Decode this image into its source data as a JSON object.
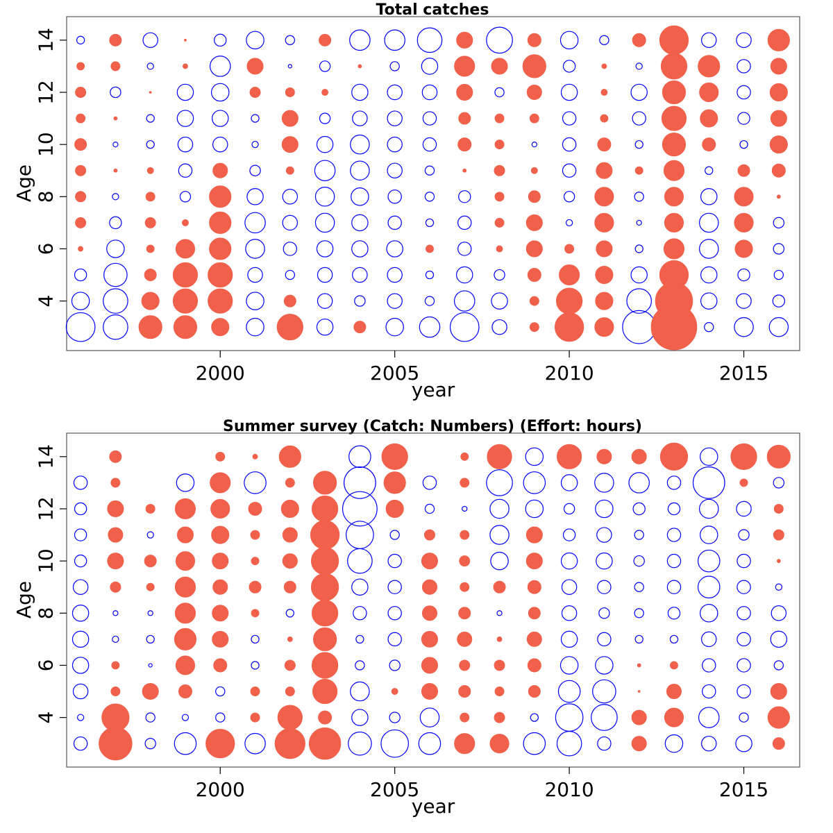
{
  "colors": {
    "positive": "#f0604a",
    "negative": "#0000ff"
  },
  "chart_data": [
    {
      "type": "bubble",
      "title": "Total catches",
      "xlabel": "year",
      "ylabel": "Age",
      "xlim": [
        1995.6,
        2016.6
      ],
      "ylim": [
        2.1,
        14.9
      ],
      "xticks": [
        2000,
        2005,
        2010,
        2015
      ],
      "yticks": [
        4,
        6,
        8,
        10,
        12,
        14
      ],
      "years": [
        1996,
        1997,
        1998,
        1999,
        2000,
        2001,
        2002,
        2003,
        2004,
        2005,
        2006,
        2007,
        2008,
        2009,
        2010,
        2011,
        2012,
        2013,
        2014,
        2015,
        2016
      ],
      "ages": [
        3,
        4,
        5,
        6,
        7,
        8,
        9,
        10,
        11,
        12,
        13,
        14
      ],
      "note": "values are residuals by year (rows) and age (columns); positive = filled, negative = open",
      "values": [
        [
          -1.0,
          -0.6,
          -0.4,
          0.15,
          0.35,
          0.35,
          0.35,
          0.4,
          0.3,
          0.35,
          0.25,
          -0.25
        ],
        [
          -0.85,
          -0.85,
          -0.8,
          -0.6,
          -0.4,
          -0.2,
          0.1,
          -0.15,
          0.1,
          -0.35,
          0.3,
          0.4
        ],
        [
          0.8,
          0.6,
          0.4,
          0.25,
          0.35,
          0.3,
          0.2,
          -0.25,
          -0.25,
          0.05,
          -0.2,
          -0.5
        ],
        [
          0.8,
          0.85,
          0.85,
          0.65,
          0.2,
          -0.35,
          -0.45,
          -0.5,
          -0.55,
          -0.55,
          0.15,
          0.05
        ],
        [
          0.6,
          0.85,
          0.85,
          0.75,
          0.75,
          0.75,
          0.5,
          -0.5,
          -0.55,
          -0.6,
          -0.7,
          -0.4
        ],
        [
          -0.6,
          -0.6,
          -0.5,
          -0.65,
          -0.7,
          -0.55,
          -0.35,
          -0.2,
          -0.25,
          0.35,
          0.55,
          -0.6
        ],
        [
          0.9,
          0.4,
          -0.3,
          -0.45,
          -0.5,
          -0.5,
          0.25,
          0.55,
          0.55,
          0.3,
          -0.1,
          -0.3
        ],
        [
          -0.55,
          -0.5,
          -0.5,
          -0.55,
          -0.65,
          -0.65,
          -0.7,
          -0.55,
          -0.35,
          0.2,
          -0.35,
          0.4
        ],
        [
          0.4,
          -0.35,
          -0.5,
          -0.55,
          -0.55,
          -0.6,
          -0.65,
          -0.65,
          -0.5,
          -0.55,
          0.1,
          -0.7
        ],
        [
          -0.6,
          -0.5,
          -0.5,
          -0.55,
          -0.45,
          -0.45,
          -0.5,
          -0.5,
          -0.5,
          -0.5,
          -0.3,
          -0.7
        ],
        [
          -0.7,
          -0.3,
          -0.25,
          0.25,
          -0.25,
          -0.3,
          -0.3,
          -0.45,
          -0.45,
          -0.5,
          -0.55,
          -0.85
        ],
        [
          -1.0,
          -0.7,
          -0.55,
          -0.45,
          -0.45,
          -0.4,
          0.1,
          0.45,
          0.4,
          0.55,
          0.7,
          0.55
        ],
        [
          -0.5,
          -0.55,
          -0.35,
          0.2,
          0.3,
          0.3,
          0.35,
          0.3,
          0.3,
          -0.3,
          0.55,
          -0.9
        ],
        [
          0.3,
          0.3,
          0.45,
          0.55,
          0.55,
          0.4,
          0.2,
          -0.15,
          0.3,
          0.5,
          0.8,
          0.45
        ],
        [
          1.0,
          0.9,
          0.7,
          0.3,
          -0.2,
          -0.35,
          -0.45,
          -0.45,
          -0.45,
          -0.55,
          -0.4,
          -0.6
        ],
        [
          0.65,
          0.6,
          0.6,
          0.55,
          0.65,
          0.65,
          0.55,
          0.45,
          0.25,
          0.2,
          0.15,
          -0.3
        ],
        [
          -1.15,
          -0.85,
          -0.55,
          -0.25,
          -0.15,
          -0.3,
          0.25,
          -0.25,
          -0.45,
          -0.55,
          -0.2,
          0.45
        ],
        [
          1.6,
          1.3,
          1.0,
          0.7,
          0.65,
          0.65,
          0.7,
          0.8,
          0.85,
          0.8,
          0.9,
          1.0
        ],
        [
          -0.3,
          -0.55,
          -0.55,
          -0.65,
          -0.65,
          -0.55,
          -0.25,
          0.45,
          0.6,
          0.65,
          0.75,
          -0.5
        ],
        [
          -0.65,
          -0.5,
          -0.4,
          0.6,
          0.65,
          0.65,
          0.4,
          -0.25,
          -0.4,
          -0.45,
          -0.45,
          -0.5
        ],
        [
          -0.65,
          -0.4,
          -0.3,
          -0.35,
          -0.35,
          0.1,
          0.45,
          0.6,
          0.55,
          0.6,
          0.55,
          0.75
        ]
      ]
    },
    {
      "type": "bubble",
      "title": "Summer survey (Catch: Numbers) (Effort: hours)",
      "xlabel": "year",
      "ylabel": "Age",
      "xlim": [
        1995.6,
        2016.6
      ],
      "ylim": [
        2.1,
        14.9
      ],
      "xticks": [
        2000,
        2005,
        2010,
        2015
      ],
      "yticks": [
        4,
        6,
        8,
        10,
        12,
        14
      ],
      "years": [
        1996,
        1997,
        1998,
        1999,
        2000,
        2001,
        2002,
        2003,
        2004,
        2005,
        2006,
        2007,
        2008,
        2009,
        2010,
        2011,
        2012,
        2013,
        2014,
        2015,
        2016
      ],
      "ages": [
        3,
        4,
        5,
        6,
        7,
        8,
        9,
        10,
        11,
        12,
        13,
        14
      ],
      "note": "values are residuals by year (rows) and age (columns); positive = filled, negative = open",
      "values": [
        [
          -0.45,
          -0.2,
          -0.5,
          -0.55,
          -0.55,
          -0.55,
          -0.5,
          -0.4,
          -0.4,
          -0.4,
          -0.45,
          0
        ],
        [
          1.15,
          0.95,
          0.3,
          0.25,
          -0.2,
          -0.15,
          0.35,
          0.55,
          0.5,
          0.55,
          0.3,
          0.4
        ],
        [
          -0.35,
          -0.3,
          0.55,
          -0.1,
          -0.25,
          -0.15,
          0.25,
          0.4,
          -0.2,
          0.3,
          0,
          0
        ],
        [
          -0.75,
          -0.2,
          0.45,
          0.65,
          0.75,
          0.7,
          0.7,
          0.65,
          0.55,
          0.7,
          -0.6,
          0
        ],
        [
          1.0,
          -0.3,
          -0.3,
          0.45,
          0.55,
          0.55,
          0.5,
          0.55,
          0.6,
          0.65,
          0.7,
          0.3
        ],
        [
          -0.7,
          0.3,
          0.3,
          -0.25,
          -0.25,
          0.25,
          0.4,
          0.25,
          0.3,
          0.45,
          -0.75,
          0.15
        ],
        [
          1.05,
          0.85,
          0.3,
          0.35,
          0.15,
          -0.25,
          0.4,
          0.5,
          0.5,
          0.6,
          0.3,
          0.75
        ],
        [
          1.1,
          0.45,
          0.85,
          0.9,
          0.8,
          0.9,
          0.95,
          0.95,
          1.0,
          0.9,
          0.8,
          0
        ],
        [
          -0.8,
          -0.55,
          -0.65,
          -0.3,
          -0.25,
          -0.45,
          -0.55,
          -0.85,
          -0.95,
          -1.2,
          -1.1,
          -0.75
        ],
        [
          -0.95,
          -0.35,
          0.2,
          -0.35,
          -0.45,
          -0.45,
          -0.45,
          -0.45,
          -0.3,
          0.6,
          0.75,
          0.9
        ],
        [
          -0.75,
          -0.65,
          0.55,
          0.55,
          0.55,
          0.5,
          0.5,
          0.55,
          0.35,
          -0.3,
          -0.45,
          0
        ],
        [
          0.7,
          0.3,
          0.4,
          0.35,
          0.5,
          0.4,
          0.3,
          0.35,
          0.3,
          -0.15,
          0.3,
          0.25
        ],
        [
          0.65,
          0.35,
          0.3,
          0.35,
          0.15,
          -0.15,
          0.4,
          -0.6,
          -0.65,
          -0.65,
          -0.9,
          0.85
        ],
        [
          -0.75,
          -0.25,
          0.4,
          0.45,
          0.5,
          0.4,
          0.45,
          0.55,
          0.55,
          -0.6,
          -0.75,
          -0.6
        ],
        [
          -0.85,
          -0.95,
          -0.75,
          -0.6,
          -0.55,
          -0.5,
          -0.5,
          -0.55,
          -0.4,
          -0.35,
          -0.55,
          0.85
        ],
        [
          -0.45,
          -0.9,
          -0.8,
          -0.6,
          -0.45,
          -0.35,
          -0.45,
          -0.55,
          -0.5,
          -0.6,
          -0.65,
          0.5
        ],
        [
          0.5,
          0.5,
          0.05,
          0.1,
          -0.25,
          -0.3,
          -0.3,
          -0.35,
          -0.3,
          -0.4,
          -0.7,
          0.5
        ],
        [
          -0.6,
          0.65,
          0.5,
          0.25,
          -0.25,
          -0.4,
          -0.45,
          -0.45,
          -0.45,
          -0.4,
          -0.45,
          0.95
        ],
        [
          -0.5,
          -0.7,
          -0.45,
          -0.45,
          -0.5,
          -0.6,
          -0.75,
          -0.75,
          -0.6,
          -0.65,
          -1.1,
          -0.6
        ],
        [
          -0.55,
          -0.3,
          -0.45,
          -0.45,
          -0.45,
          -0.45,
          -0.45,
          -0.45,
          -0.35,
          -0.5,
          0.25,
          0.9
        ],
        [
          0.4,
          0.75,
          0.55,
          -0.3,
          -0.55,
          -0.5,
          -0.2,
          0.1,
          0.35,
          0.3,
          -0.35,
          0.8
        ]
      ]
    }
  ]
}
